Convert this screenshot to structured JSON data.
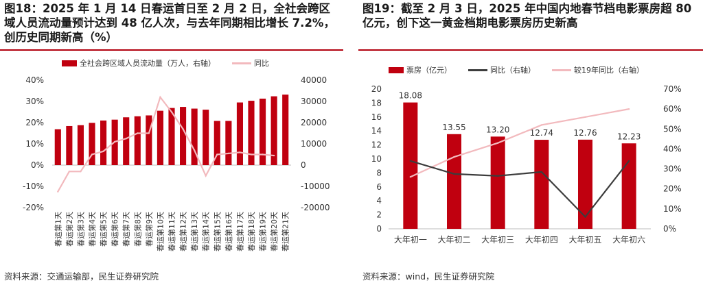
{
  "colors": {
    "bar": "#c0000f",
    "line_light": "#f2b9bd",
    "line_dark": "#3c3c3c",
    "accent": "#b2000e"
  },
  "left": {
    "title": "图18：2025 年 1 月 14 日春运首日至 2 月 2 日，全社会跨区域人员流动量预计达到 48 亿人次，与去年同期相比增长 7.2%，创历史同期新高（%）",
    "legend": [
      "全社会跨区域人员流动量（万人，右轴）",
      "同比"
    ],
    "source": "资料来源：交通运输部，民生证券研究院",
    "chart_data": {
      "type": "bar",
      "categories": [
        "春运第1天",
        "春运第2天",
        "春运第3天",
        "春运第4天",
        "春运第5天",
        "春运第6天",
        "春运第7天",
        "春运第8天",
        "春运第9天",
        "春运第10天",
        "春运第11天",
        "春运第12天",
        "春运第13天",
        "春运第14天",
        "春运第15天",
        "春运第16天",
        "春运第17天",
        "春运第18天",
        "春运第19天",
        "春运第20天",
        "春运第21天"
      ],
      "series": [
        {
          "name": "全社会跨区域人员流动量（万人，右轴）",
          "type": "bar",
          "axis": "right",
          "values": [
            16900,
            18400,
            18800,
            19900,
            21000,
            21400,
            22500,
            23000,
            23400,
            25600,
            26900,
            27400,
            26600,
            26100,
            20800,
            20800,
            29500,
            30300,
            31300,
            32400,
            33200
          ]
        },
        {
          "name": "同比",
          "type": "line",
          "axis": "left",
          "values": [
            -12.5,
            -3,
            -3,
            5,
            6.5,
            11,
            12.5,
            15,
            15,
            32,
            25,
            17,
            7,
            -5,
            5,
            5.5,
            6,
            5,
            5,
            4.5,
            null
          ]
        }
      ],
      "yleft": {
        "min": -20,
        "max": 40,
        "step": 10,
        "ticks": [
          "-20%",
          "-10%",
          "0%",
          "10%",
          "20%",
          "30%",
          "40%"
        ]
      },
      "yright": {
        "min": -20000,
        "max": 40000,
        "step": 10000,
        "ticks": [
          "-20000",
          "-10000",
          "0",
          "10000",
          "20000",
          "30000",
          "40000"
        ]
      }
    }
  },
  "right": {
    "title": "图19：截至 2 月 3 日，2025 年中国内地春节档电影票房超 80 亿元，创下这一黄金档期电影票房历史新高",
    "legend": [
      "票房（亿元）",
      "同比（右轴）",
      "较19年同比（右轴）"
    ],
    "source": "资料来源：wind，民生证券研究院",
    "chart_data": {
      "type": "bar",
      "categories": [
        "大年初一",
        "大年初二",
        "大年初三",
        "大年初四",
        "大年初五",
        "大年初六"
      ],
      "series": [
        {
          "name": "票房（亿元）",
          "type": "bar",
          "axis": "left",
          "values": [
            18.08,
            13.55,
            13.2,
            12.74,
            12.76,
            12.23
          ],
          "labels": [
            "18.08",
            "13.55",
            "13.20",
            "12.74",
            "12.76",
            "12.23"
          ]
        },
        {
          "name": "同比（右轴）",
          "type": "line",
          "axis": "right",
          "values": [
            34,
            27.5,
            26.5,
            28.5,
            6,
            34
          ]
        },
        {
          "name": "较19年同比（右轴）",
          "type": "line",
          "axis": "right",
          "values": [
            26,
            36,
            43,
            52,
            56,
            60
          ]
        }
      ],
      "yleft": {
        "min": 0,
        "max": 20,
        "step": 2,
        "ticks": [
          "0",
          "2",
          "4",
          "6",
          "8",
          "10",
          "12",
          "14",
          "16",
          "18",
          "20"
        ]
      },
      "yright": {
        "min": 0,
        "max": 70,
        "step": 10,
        "ticks": [
          "0%",
          "10%",
          "20%",
          "30%",
          "40%",
          "50%",
          "60%",
          "70%"
        ]
      }
    }
  }
}
